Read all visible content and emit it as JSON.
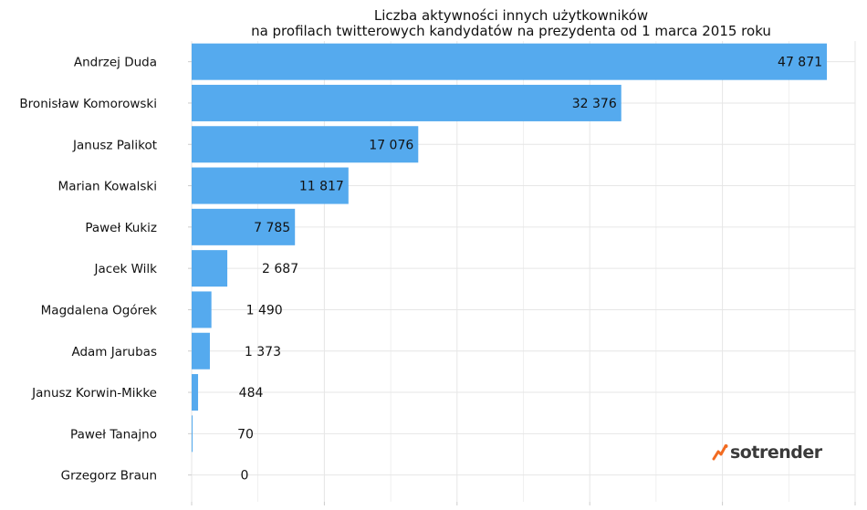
{
  "title_line1": "Liczba aktywności innych użytkowników",
  "title_line2": "na profilach twitterowych kandydatów na prezydenta od 1 marca 2015 roku",
  "logo": {
    "text": "sotrender",
    "icon": "sotrender-spark-icon",
    "accent_color": "#f26b21"
  },
  "colors": {
    "bar": "#55aaee",
    "grid": "#e6e6e6",
    "text": "#111111"
  },
  "chart_data": {
    "type": "bar",
    "orientation": "horizontal",
    "title": "Liczba aktywności innych użytkowników na profilach twitterowych kandydatów na prezydenta od 1 marca 2015 roku",
    "categories": [
      "Andrzej Duda",
      "Bronisław Komorowski",
      "Janusz Palikot",
      "Marian Kowalski",
      "Paweł Kukiz",
      "Jacek Wilk",
      "Magdalena Ogórek",
      "Adam Jarubas",
      "Janusz Korwin-Mikke",
      "Paweł Tanajno",
      "Grzegorz Braun"
    ],
    "values": [
      47871,
      32376,
      17076,
      11817,
      7785,
      2687,
      1490,
      1373,
      484,
      70,
      0
    ],
    "value_labels": [
      "47 871",
      "32 376",
      "17 076",
      "11 817",
      "7 785",
      "2 687",
      "1 490",
      "1 373",
      "484",
      "70",
      "0"
    ],
    "xlim": [
      0,
      50000
    ],
    "grid": true,
    "legend": "none"
  }
}
